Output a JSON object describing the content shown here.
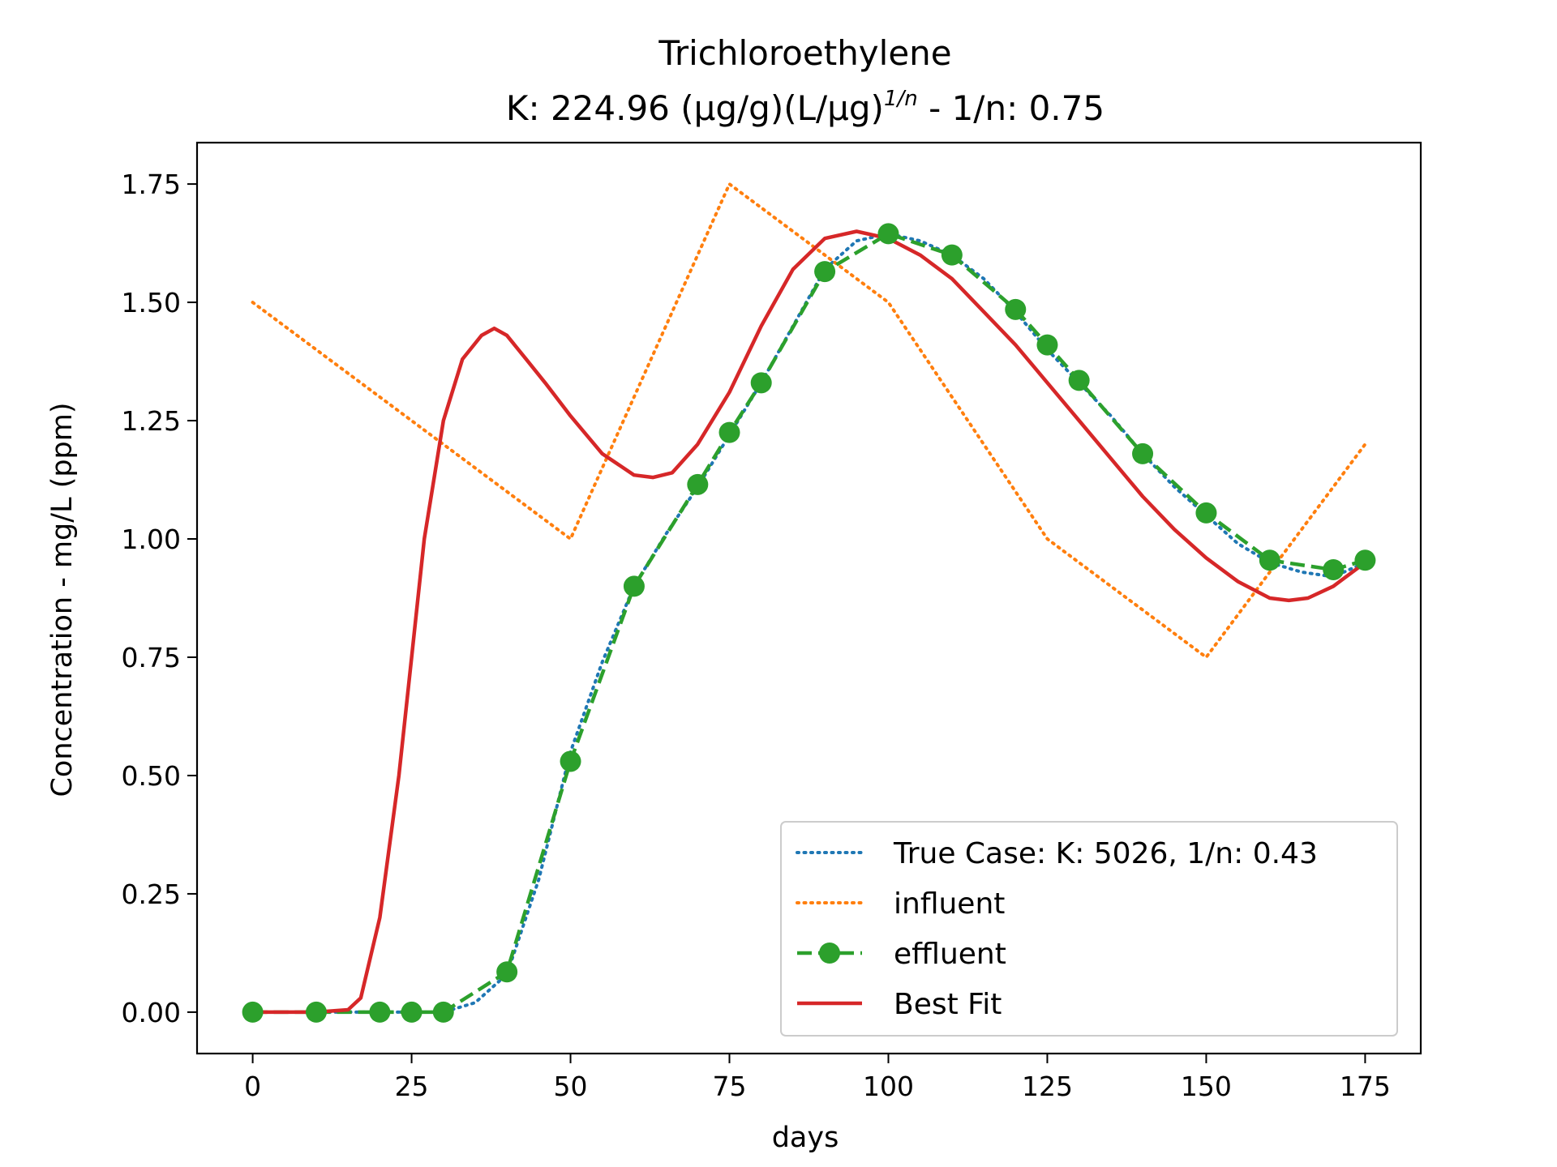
{
  "chart_data": {
    "type": "line",
    "title": "Trichloroethylene",
    "subtitle_prefix": "K: 224.96 (μg/g)(L/μg)",
    "subtitle_exp": "1/n",
    "subtitle_suffix": " - 1/n: 0.75",
    "xlabel": "days",
    "ylabel": "Concentration - mg/L (ppm)",
    "xlim": [
      -8.75,
      183.75
    ],
    "ylim": [
      -0.0875,
      1.8375
    ],
    "xticks": [
      0,
      25,
      50,
      75,
      100,
      125,
      150,
      175
    ],
    "yticks": [
      0.0,
      0.25,
      0.5,
      0.75,
      1.0,
      1.25,
      1.5,
      1.75
    ],
    "grid": false,
    "legend_position": "lower-right",
    "series": [
      {
        "name": "True Case: K: 5026, 1/n: 0.43",
        "color": "#1f77b4",
        "style": "dotted",
        "x": [
          0,
          10,
          20,
          25,
          30,
          35,
          40,
          45,
          50,
          55,
          60,
          65,
          70,
          75,
          80,
          85,
          90,
          95,
          100,
          105,
          110,
          115,
          120,
          125,
          130,
          135,
          140,
          145,
          150,
          155,
          160,
          165,
          170,
          175
        ],
        "y": [
          0,
          0,
          0,
          0,
          0,
          0.02,
          0.08,
          0.28,
          0.55,
          0.74,
          0.9,
          1.01,
          1.11,
          1.22,
          1.33,
          1.45,
          1.57,
          1.63,
          1.645,
          1.63,
          1.6,
          1.55,
          1.48,
          1.4,
          1.33,
          1.26,
          1.18,
          1.11,
          1.05,
          0.99,
          0.95,
          0.93,
          0.92,
          0.95
        ]
      },
      {
        "name": "influent",
        "color": "#ff7f0e",
        "style": "dotted",
        "x": [
          0,
          50,
          75,
          100,
          125,
          150,
          175
        ],
        "y": [
          1.5,
          1.0,
          1.75,
          1.5,
          1.0,
          0.75,
          1.2
        ]
      },
      {
        "name": "effluent",
        "color": "#2ca02c",
        "style": "dashed-markers",
        "x": [
          0,
          10,
          20,
          25,
          30,
          40,
          50,
          60,
          70,
          75,
          80,
          90,
          100,
          110,
          120,
          125,
          130,
          140,
          150,
          160,
          170,
          175
        ],
        "y": [
          0,
          0,
          0,
          0,
          0,
          0.085,
          0.53,
          0.9,
          1.115,
          1.225,
          1.33,
          1.565,
          1.645,
          1.6,
          1.485,
          1.41,
          1.335,
          1.18,
          1.055,
          0.955,
          0.935,
          0.955
        ]
      },
      {
        "name": "Best Fit",
        "color": "#d62728",
        "style": "solid",
        "x": [
          0,
          10,
          15,
          17,
          20,
          23,
          25,
          27,
          30,
          33,
          36,
          38,
          40,
          43,
          46,
          50,
          55,
          60,
          63,
          66,
          70,
          75,
          80,
          85,
          90,
          95,
          100,
          105,
          110,
          115,
          120,
          125,
          130,
          135,
          140,
          145,
          150,
          155,
          160,
          163,
          166,
          170,
          175
        ],
        "y": [
          0,
          0,
          0.005,
          0.03,
          0.2,
          0.5,
          0.75,
          1.0,
          1.25,
          1.38,
          1.43,
          1.445,
          1.43,
          1.38,
          1.33,
          1.26,
          1.18,
          1.135,
          1.13,
          1.14,
          1.2,
          1.31,
          1.45,
          1.57,
          1.635,
          1.65,
          1.635,
          1.6,
          1.55,
          1.48,
          1.41,
          1.33,
          1.25,
          1.17,
          1.09,
          1.02,
          0.96,
          0.91,
          0.875,
          0.87,
          0.875,
          0.9,
          0.95
        ]
      }
    ]
  }
}
